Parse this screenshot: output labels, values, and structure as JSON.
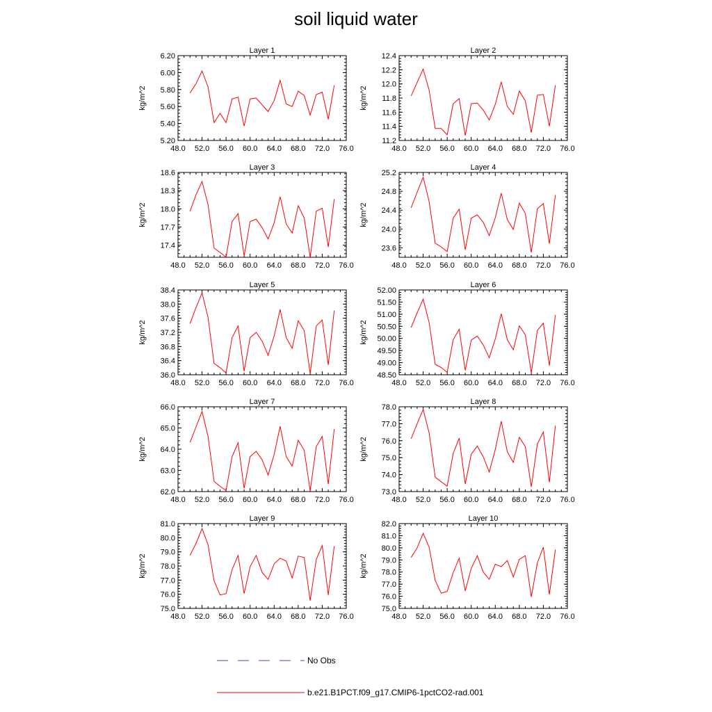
{
  "title": "soil liquid water",
  "legend": [
    {
      "label": "No Obs",
      "color": "#4a4ab0",
      "dash": true
    },
    {
      "label": "b.e21.B1PCT.f09_g17.CMIP6-1pctCO2-rad.001",
      "color": "#ff0000",
      "dash": false
    }
  ],
  "chart_data": [
    {
      "type": "line",
      "title": "Layer 1",
      "ylabel": "kg/m^2",
      "xlim": [
        48,
        76
      ],
      "ylim": [
        5.2,
        6.2
      ],
      "yticks": [
        "5.20",
        "5.40",
        "5.60",
        "5.80",
        "6.00",
        "6.20"
      ],
      "xticks": [
        "48.0",
        "52.0",
        "56.0",
        "60.0",
        "64.0",
        "68.0",
        "72.0",
        "76.0"
      ],
      "series": [
        {
          "color": "#ff0000",
          "x": [
            50,
            51,
            52,
            53,
            54,
            55,
            56,
            57,
            58,
            59,
            60,
            61,
            62,
            63,
            64,
            65,
            66,
            67,
            68,
            69,
            70,
            71,
            72,
            73,
            74
          ],
          "y": [
            5.76,
            5.87,
            6.02,
            5.83,
            5.41,
            5.52,
            5.41,
            5.69,
            5.71,
            5.37,
            5.69,
            5.7,
            5.62,
            5.54,
            5.67,
            5.91,
            5.63,
            5.6,
            5.78,
            5.73,
            5.5,
            5.74,
            5.77,
            5.45,
            5.85
          ]
        }
      ]
    },
    {
      "type": "line",
      "title": "Layer 2",
      "ylabel": "kg/m^2",
      "xlim": [
        48,
        76
      ],
      "ylim": [
        11.2,
        12.4
      ],
      "yticks": [
        "11.2",
        "11.4",
        "11.6",
        "11.8",
        "12.0",
        "12.2",
        "12.4"
      ],
      "xticks": [
        "48.0",
        "52.0",
        "56.0",
        "60.0",
        "64.0",
        "68.0",
        "72.0",
        "76.0"
      ],
      "series": [
        {
          "color": "#ff0000",
          "x": [
            50,
            51,
            52,
            53,
            54,
            55,
            56,
            57,
            58,
            59,
            60,
            61,
            62,
            63,
            64,
            65,
            66,
            67,
            68,
            69,
            70,
            71,
            72,
            73,
            74
          ],
          "y": [
            11.83,
            12.02,
            12.21,
            11.91,
            11.37,
            11.37,
            11.28,
            11.72,
            11.79,
            11.27,
            11.72,
            11.73,
            11.63,
            11.49,
            11.71,
            12.03,
            11.68,
            11.57,
            11.9,
            11.76,
            11.31,
            11.84,
            11.85,
            11.4,
            11.98
          ]
        }
      ]
    },
    {
      "type": "line",
      "title": "Layer 3",
      "ylabel": "kg/m^2",
      "xlim": [
        48,
        76
      ],
      "ylim": [
        17.2,
        18.6
      ],
      "yticks": [
        "17.4",
        "17.7",
        "18.0",
        "18.3",
        "18.6"
      ],
      "xticks": [
        "48.0",
        "52.0",
        "56.0",
        "60.0",
        "64.0",
        "68.0",
        "72.0",
        "76.0"
      ],
      "series": [
        {
          "color": "#ff0000",
          "x": [
            50,
            51,
            52,
            53,
            54,
            55,
            56,
            57,
            58,
            59,
            60,
            61,
            62,
            63,
            64,
            65,
            66,
            67,
            68,
            69,
            70,
            71,
            72,
            73,
            74
          ],
          "y": [
            17.96,
            18.23,
            18.45,
            18.07,
            17.35,
            17.28,
            17.2,
            17.79,
            17.92,
            17.22,
            17.79,
            17.83,
            17.69,
            17.5,
            17.77,
            18.2,
            17.75,
            17.6,
            18.05,
            17.85,
            17.2,
            17.96,
            18.01,
            17.37,
            18.16
          ]
        }
      ]
    },
    {
      "type": "line",
      "title": "Layer 4",
      "ylabel": "kg/m^2",
      "xlim": [
        48,
        76
      ],
      "ylim": [
        23.4,
        25.2
      ],
      "yticks": [
        "23.6",
        "24.0",
        "24.4",
        "24.8",
        "25.2"
      ],
      "xticks": [
        "48.0",
        "52.0",
        "56.0",
        "60.0",
        "64.0",
        "68.0",
        "72.0",
        "76.0"
      ],
      "series": [
        {
          "color": "#ff0000",
          "x": [
            50,
            51,
            52,
            53,
            54,
            55,
            56,
            57,
            58,
            59,
            60,
            61,
            62,
            63,
            64,
            65,
            66,
            67,
            68,
            69,
            70,
            71,
            72,
            73,
            74
          ],
          "y": [
            24.45,
            24.78,
            25.1,
            24.58,
            23.7,
            23.62,
            23.52,
            24.23,
            24.42,
            23.56,
            24.23,
            24.3,
            24.14,
            23.86,
            24.24,
            24.76,
            24.2,
            23.99,
            24.55,
            24.33,
            23.5,
            24.43,
            24.54,
            23.69,
            24.72
          ]
        }
      ]
    },
    {
      "type": "line",
      "title": "Layer 5",
      "ylabel": "kg/m^2",
      "xlim": [
        48,
        76
      ],
      "ylim": [
        36.0,
        38.4
      ],
      "yticks": [
        "36.0",
        "36.4",
        "36.8",
        "37.2",
        "37.6",
        "38.0",
        "38.4"
      ],
      "xticks": [
        "48.0",
        "52.0",
        "56.0",
        "60.0",
        "64.0",
        "68.0",
        "72.0",
        "76.0"
      ],
      "series": [
        {
          "color": "#ff0000",
          "x": [
            50,
            51,
            52,
            53,
            54,
            55,
            56,
            57,
            58,
            59,
            60,
            61,
            62,
            63,
            64,
            65,
            66,
            67,
            68,
            69,
            70,
            71,
            72,
            73,
            74
          ],
          "y": [
            37.45,
            37.9,
            38.32,
            37.62,
            36.32,
            36.2,
            36.05,
            37.05,
            37.38,
            36.1,
            37.05,
            37.2,
            36.95,
            36.55,
            37.1,
            37.85,
            37.05,
            36.75,
            37.53,
            37.25,
            36.03,
            37.38,
            37.55,
            36.28,
            37.82
          ]
        }
      ]
    },
    {
      "type": "line",
      "title": "Layer 6",
      "ylabel": "kg/m^2",
      "xlim": [
        48,
        76
      ],
      "ylim": [
        48.5,
        52.0
      ],
      "yticks": [
        "48.50",
        "49.00",
        "49.50",
        "50.00",
        "50.50",
        "51.00",
        "51.50",
        "52.00"
      ],
      "xticks": [
        "48.0",
        "52.0",
        "56.0",
        "60.0",
        "64.0",
        "68.0",
        "72.0",
        "76.0"
      ],
      "series": [
        {
          "color": "#ff0000",
          "x": [
            50,
            51,
            52,
            53,
            54,
            55,
            56,
            57,
            58,
            59,
            60,
            61,
            62,
            63,
            64,
            65,
            66,
            67,
            68,
            69,
            70,
            71,
            72,
            73,
            74
          ],
          "y": [
            50.45,
            51.05,
            51.62,
            50.65,
            48.93,
            48.8,
            48.6,
            49.95,
            50.38,
            48.68,
            49.93,
            50.1,
            49.73,
            49.2,
            49.98,
            51.02,
            49.95,
            49.53,
            50.52,
            50.15,
            48.57,
            50.33,
            50.63,
            48.88,
            50.97
          ]
        }
      ]
    },
    {
      "type": "line",
      "title": "Layer 7",
      "ylabel": "kg/m^2",
      "xlim": [
        48,
        76
      ],
      "ylim": [
        62.0,
        66.0
      ],
      "yticks": [
        "62.0",
        "63.0",
        "64.0",
        "65.0",
        "66.0"
      ],
      "xticks": [
        "48.0",
        "52.0",
        "56.0",
        "60.0",
        "64.0",
        "68.0",
        "72.0",
        "76.0"
      ],
      "series": [
        {
          "color": "#ff0000",
          "x": [
            50,
            51,
            52,
            53,
            54,
            55,
            56,
            57,
            58,
            59,
            60,
            61,
            62,
            63,
            64,
            65,
            66,
            67,
            68,
            69,
            70,
            71,
            72,
            73,
            74
          ],
          "y": [
            64.32,
            65.05,
            65.78,
            64.6,
            62.48,
            62.25,
            62.05,
            63.65,
            64.3,
            62.15,
            63.65,
            63.9,
            63.5,
            62.78,
            63.75,
            65.08,
            63.65,
            63.2,
            64.42,
            63.95,
            62.03,
            64.12,
            64.6,
            62.35,
            64.95
          ]
        }
      ]
    },
    {
      "type": "line",
      "title": "Layer 8",
      "ylabel": "kg/m^2",
      "xlim": [
        48,
        76
      ],
      "ylim": [
        73.0,
        78.0
      ],
      "yticks": [
        "73.0",
        "74.0",
        "75.0",
        "76.0",
        "77.0",
        "78.0"
      ],
      "xticks": [
        "48.0",
        "52.0",
        "56.0",
        "60.0",
        "64.0",
        "68.0",
        "72.0",
        "76.0"
      ],
      "series": [
        {
          "color": "#ff0000",
          "x": [
            50,
            51,
            52,
            53,
            54,
            55,
            56,
            57,
            58,
            59,
            60,
            61,
            62,
            63,
            64,
            65,
            66,
            67,
            68,
            69,
            70,
            71,
            72,
            73,
            74
          ],
          "y": [
            76.12,
            77.0,
            77.85,
            76.45,
            73.85,
            73.58,
            73.32,
            75.25,
            76.15,
            73.45,
            75.2,
            75.68,
            75.05,
            74.15,
            75.48,
            77.15,
            75.35,
            74.72,
            76.2,
            75.65,
            73.28,
            75.8,
            76.52,
            73.55,
            76.88
          ]
        }
      ]
    },
    {
      "type": "line",
      "title": "Layer 9",
      "ylabel": "kg/m^2",
      "xlim": [
        48,
        76
      ],
      "ylim": [
        75.0,
        81.0
      ],
      "yticks": [
        "75.0",
        "76.0",
        "77.0",
        "78.0",
        "79.0",
        "80.0",
        "81.0"
      ],
      "xticks": [
        "48.0",
        "52.0",
        "56.0",
        "60.0",
        "64.0",
        "68.0",
        "72.0",
        "76.0"
      ],
      "series": [
        {
          "color": "#ff0000",
          "x": [
            50,
            51,
            52,
            53,
            54,
            55,
            56,
            57,
            58,
            59,
            60,
            61,
            62,
            63,
            64,
            65,
            66,
            67,
            68,
            69,
            70,
            71,
            72,
            73,
            74
          ],
          "y": [
            78.75,
            79.6,
            80.65,
            79.5,
            76.95,
            75.95,
            76.05,
            77.75,
            78.75,
            76.05,
            77.95,
            78.75,
            77.55,
            77.05,
            78.15,
            78.55,
            78.35,
            77.15,
            78.7,
            78.6,
            75.55,
            78.45,
            79.45,
            75.95,
            79.4
          ]
        }
      ]
    },
    {
      "type": "line",
      "title": "Layer 10",
      "ylabel": "kg/m^2",
      "xlim": [
        48,
        76
      ],
      "ylim": [
        75.0,
        82.0
      ],
      "yticks": [
        "75.0",
        "76.0",
        "77.0",
        "78.0",
        "79.0",
        "80.0",
        "81.0",
        "82.0"
      ],
      "xticks": [
        "48.0",
        "52.0",
        "56.0",
        "60.0",
        "64.0",
        "68.0",
        "72.0",
        "76.0"
      ],
      "series": [
        {
          "color": "#ff0000",
          "x": [
            50,
            51,
            52,
            53,
            54,
            55,
            56,
            57,
            58,
            59,
            60,
            61,
            62,
            63,
            64,
            65,
            66,
            67,
            68,
            69,
            70,
            71,
            72,
            73,
            74
          ],
          "y": [
            79.2,
            80.0,
            81.2,
            80.05,
            77.3,
            76.25,
            76.4,
            77.95,
            79.15,
            76.45,
            78.3,
            79.35,
            78.0,
            77.4,
            78.65,
            78.45,
            78.95,
            77.6,
            79.05,
            79.35,
            75.95,
            78.75,
            80.05,
            76.15,
            79.85
          ]
        }
      ]
    }
  ]
}
